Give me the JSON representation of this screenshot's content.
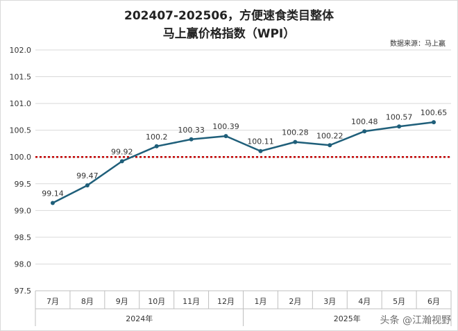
{
  "title_line1": "202407-202506，方便速食类目整体",
  "title_line2": "马上赢价格指数（WPI）",
  "source": "数据来源：马上赢",
  "watermark": "头条 @江瀚视野",
  "colors": {
    "line": "#1f5f7a",
    "reference": "#c00000",
    "grid": "#d9d9d9",
    "text": "#333333"
  },
  "chart_data": {
    "type": "line",
    "categories": [
      "7月",
      "8月",
      "9月",
      "10月",
      "11月",
      "12月",
      "1月",
      "2月",
      "3月",
      "4月",
      "5月",
      "6月"
    ],
    "groups": [
      {
        "label": "2024年",
        "count": 6
      },
      {
        "label": "2025年",
        "count": 6
      }
    ],
    "series": [
      {
        "values": [
          99.14,
          99.47,
          99.92,
          100.2,
          100.33,
          100.39,
          100.11,
          100.28,
          100.22,
          100.48,
          100.57,
          100.65
        ],
        "labels": [
          "99.14",
          "99.47",
          "99.92",
          "100.2",
          "100.33",
          "100.39",
          "100.11",
          "100.28",
          "100.22",
          "100.48",
          "100.57",
          "100.65"
        ]
      }
    ],
    "reference_line": 100.0,
    "ylim": [
      97.5,
      102.0
    ],
    "yticks": [
      "102.0",
      "101.5",
      "101.0",
      "100.5",
      "100.0",
      "99.5",
      "99.0",
      "98.5",
      "98.0",
      "97.5"
    ],
    "grid": true
  }
}
